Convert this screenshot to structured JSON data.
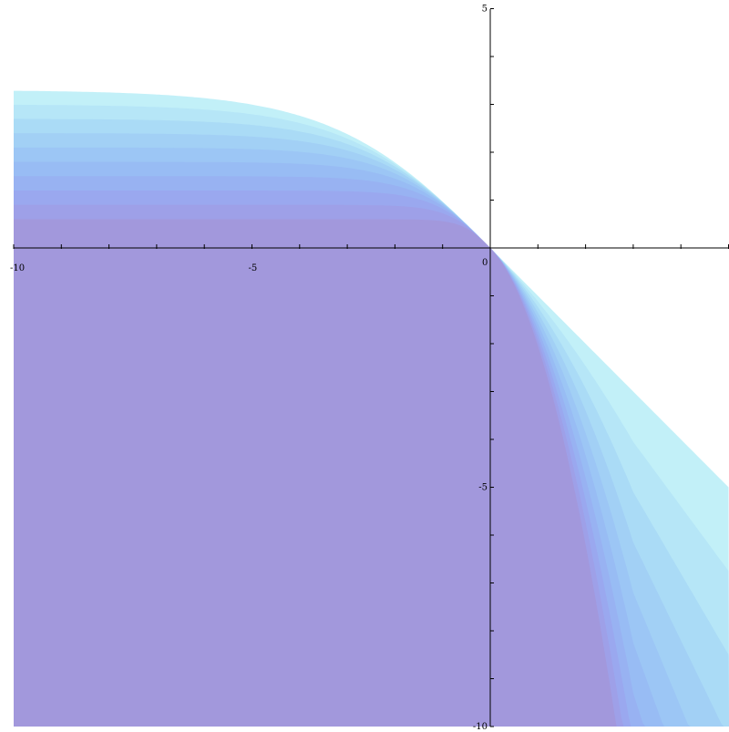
{
  "chart_data": {
    "type": "area",
    "title": "",
    "xlabel": "",
    "ylabel": "",
    "xlim": [
      -10,
      5
    ],
    "ylim": [
      -10,
      5
    ],
    "grid": false,
    "x_tick_labels": [
      {
        "value": -10,
        "label": "-10"
      },
      {
        "value": -5,
        "label": "-5"
      },
      {
        "value": 0,
        "label": "0"
      }
    ],
    "y_tick_labels": [
      {
        "value": 5,
        "label": "5"
      },
      {
        "value": -5,
        "label": "-5"
      },
      {
        "value": -10,
        "label": "-10"
      }
    ],
    "x_minor_ticks": [
      -9,
      -8,
      -7,
      -6,
      -4,
      -3,
      -2,
      -1,
      1,
      2,
      3,
      4,
      5
    ],
    "y_minor_ticks": [
      4,
      3,
      2,
      1,
      -1,
      -2,
      -3,
      -4,
      -6,
      -7,
      -8,
      -9
    ],
    "description_of_series": "Nested regions y <= boundary_k(x); each boundary passes through the origin with slope -1 there, and flattens to an asymptote as x -> -infinity and steepens as x -> +infinity",
    "series": [
      {
        "k": 1,
        "asymptote_y": 3.3,
        "color": "#c2f0f8"
      },
      {
        "k": 2,
        "asymptote_y": 3.0,
        "color": "#b6e6f7"
      },
      {
        "k": 3,
        "asymptote_y": 2.7,
        "color": "#aadbf6"
      },
      {
        "k": 4,
        "asymptote_y": 2.4,
        "color": "#a2d0f5"
      },
      {
        "k": 5,
        "asymptote_y": 2.1,
        "color": "#9cc6f5"
      },
      {
        "k": 6,
        "asymptote_y": 1.8,
        "color": "#98bcf4"
      },
      {
        "k": 7,
        "asymptote_y": 1.5,
        "color": "#98b2f2"
      },
      {
        "k": 8,
        "asymptote_y": 1.2,
        "color": "#9aa8ef"
      },
      {
        "k": 9,
        "asymptote_y": 0.9,
        "color": "#9ea0e8"
      },
      {
        "k": 10,
        "asymptote_y": 0.6,
        "color": "#a298dc"
      }
    ]
  }
}
